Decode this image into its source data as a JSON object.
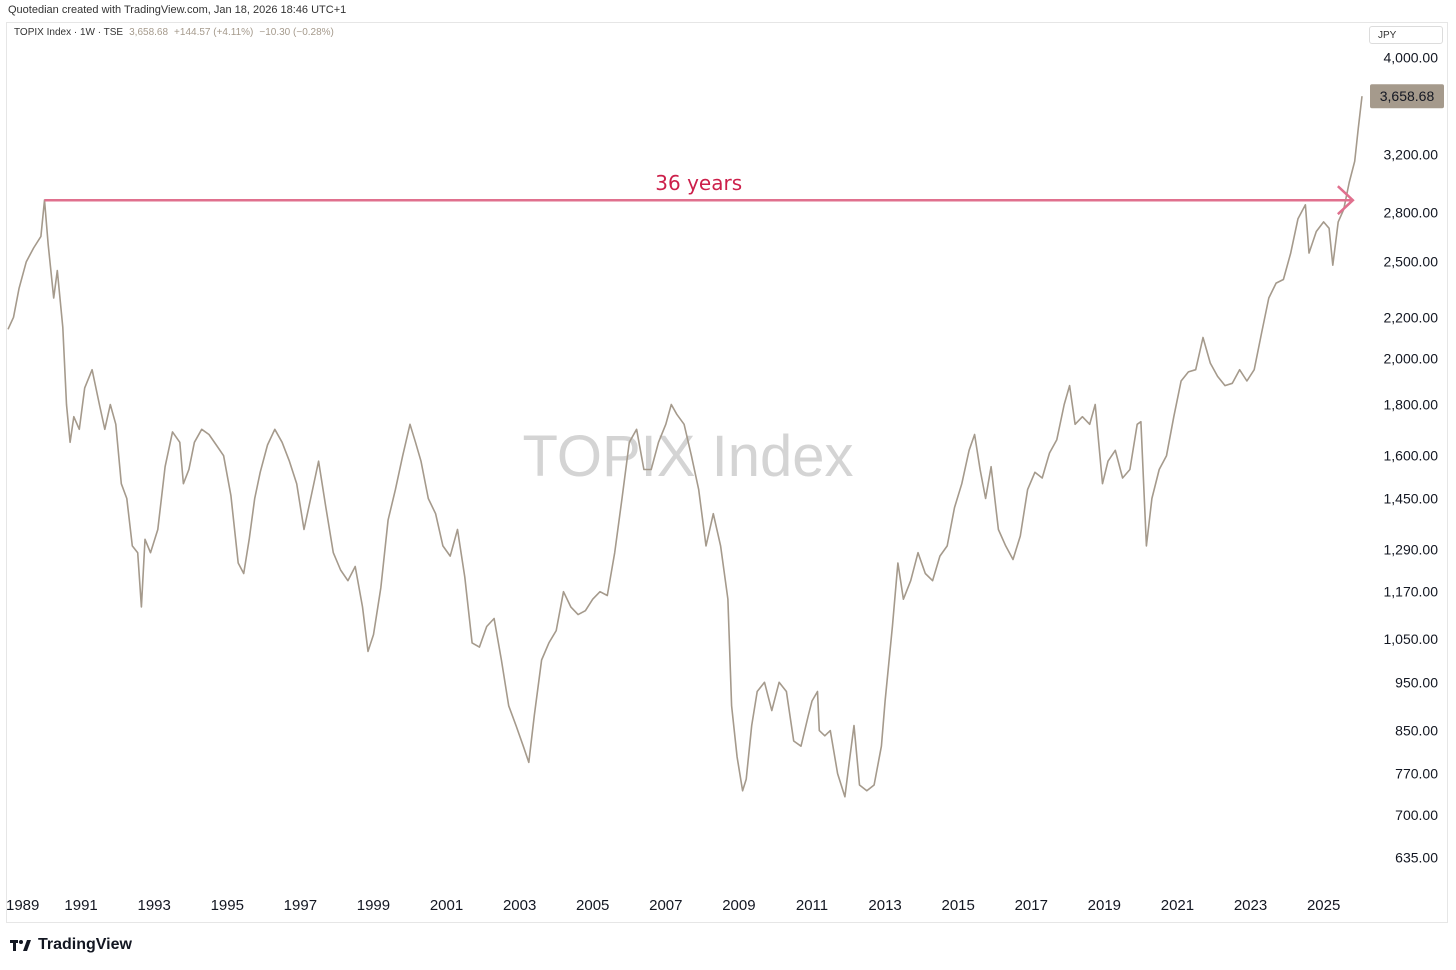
{
  "header": {
    "attribution": "Quotedian created with TradingView.com, Jan 18, 2026 18:46 UTC+1"
  },
  "legend": {
    "symbol": "TOPIX Index · 1W · TSE",
    "last": "3,658.68",
    "change": "+144.57 (+4.11%)",
    "after": "−10.30 (−0.28%)"
  },
  "currency": "JPY",
  "footer": {
    "brand": "TradingView",
    "logo_icon": "tradingview-logo-icon"
  },
  "colors": {
    "line": "#a59a8c",
    "annotation": "#e0708e",
    "annotation_text": "#cc1f4a",
    "watermark": "#d4d4d4",
    "price_tag": "#a59a8c"
  },
  "chart_data": {
    "type": "line",
    "watermark": "TOPIX Index",
    "y_scale": "log",
    "ylim": [
      600,
      4300
    ],
    "xlim": [
      1989.0,
      2026.05
    ],
    "y_ticks": [
      {
        "v": 4000,
        "label": "4,000.00"
      },
      {
        "v": 3200,
        "label": "3,200.00"
      },
      {
        "v": 2800,
        "label": "2,800.00"
      },
      {
        "v": 2500,
        "label": "2,500.00"
      },
      {
        "v": 2200,
        "label": "2,200.00"
      },
      {
        "v": 2000,
        "label": "2,000.00"
      },
      {
        "v": 1800,
        "label": "1,800.00"
      },
      {
        "v": 1600,
        "label": "1,600.00"
      },
      {
        "v": 1450,
        "label": "1,450.00"
      },
      {
        "v": 1290,
        "label": "1,290.00"
      },
      {
        "v": 1170,
        "label": "1,170.00"
      },
      {
        "v": 1050,
        "label": "1,050.00"
      },
      {
        "v": 950,
        "label": "950.00"
      },
      {
        "v": 850,
        "label": "850.00"
      },
      {
        "v": 770,
        "label": "770.00"
      },
      {
        "v": 700,
        "label": "700.00"
      },
      {
        "v": 635,
        "label": "635.00"
      }
    ],
    "x_ticks": [
      {
        "v": 1989.0,
        "label": "1989"
      },
      {
        "v": 1991.0,
        "label": "1991"
      },
      {
        "v": 1993.0,
        "label": "1993"
      },
      {
        "v": 1995.0,
        "label": "1995"
      },
      {
        "v": 1997.0,
        "label": "1997"
      },
      {
        "v": 1999.0,
        "label": "1999"
      },
      {
        "v": 2001.0,
        "label": "2001"
      },
      {
        "v": 2003.0,
        "label": "2003"
      },
      {
        "v": 2005.0,
        "label": "2005"
      },
      {
        "v": 2007.0,
        "label": "2007"
      },
      {
        "v": 2009.0,
        "label": "2009"
      },
      {
        "v": 2011.0,
        "label": "2011"
      },
      {
        "v": 2013.0,
        "label": "2013"
      },
      {
        "v": 2015.0,
        "label": "2015"
      },
      {
        "v": 2017.0,
        "label": "2017"
      },
      {
        "v": 2019.0,
        "label": "2019"
      },
      {
        "v": 2021.0,
        "label": "2021"
      },
      {
        "v": 2023.0,
        "label": "2023"
      },
      {
        "v": 2025.0,
        "label": "2025"
      }
    ],
    "last_price": {
      "v": 3658.68,
      "label": "3,658.68"
    },
    "annotation": {
      "label": "36 years",
      "from_x": 1990.0,
      "to_x": 2025.8,
      "y": 2880
    },
    "series": [
      {
        "points": [
          [
            1989.0,
            2140
          ],
          [
            1989.15,
            2200
          ],
          [
            1989.3,
            2350
          ],
          [
            1989.5,
            2500
          ],
          [
            1989.7,
            2580
          ],
          [
            1989.9,
            2650
          ],
          [
            1990.0,
            2881
          ],
          [
            1990.1,
            2600
          ],
          [
            1990.25,
            2300
          ],
          [
            1990.35,
            2450
          ],
          [
            1990.5,
            2150
          ],
          [
            1990.6,
            1800
          ],
          [
            1990.7,
            1650
          ],
          [
            1990.8,
            1750
          ],
          [
            1990.95,
            1700
          ],
          [
            1991.1,
            1870
          ],
          [
            1991.3,
            1950
          ],
          [
            1991.5,
            1800
          ],
          [
            1991.65,
            1700
          ],
          [
            1991.8,
            1800
          ],
          [
            1991.95,
            1720
          ],
          [
            1992.1,
            1500
          ],
          [
            1992.25,
            1450
          ],
          [
            1992.4,
            1300
          ],
          [
            1992.55,
            1280
          ],
          [
            1992.65,
            1130
          ],
          [
            1992.75,
            1320
          ],
          [
            1992.9,
            1280
          ],
          [
            1993.1,
            1350
          ],
          [
            1993.3,
            1560
          ],
          [
            1993.5,
            1690
          ],
          [
            1993.7,
            1650
          ],
          [
            1993.8,
            1500
          ],
          [
            1993.95,
            1550
          ],
          [
            1994.1,
            1650
          ],
          [
            1994.3,
            1700
          ],
          [
            1994.5,
            1680
          ],
          [
            1994.7,
            1640
          ],
          [
            1994.9,
            1600
          ],
          [
            1995.1,
            1460
          ],
          [
            1995.3,
            1250
          ],
          [
            1995.45,
            1220
          ],
          [
            1995.6,
            1320
          ],
          [
            1995.75,
            1450
          ],
          [
            1995.9,
            1540
          ],
          [
            1996.1,
            1640
          ],
          [
            1996.3,
            1700
          ],
          [
            1996.5,
            1650
          ],
          [
            1996.7,
            1580
          ],
          [
            1996.9,
            1500
          ],
          [
            1997.1,
            1350
          ],
          [
            1997.3,
            1460
          ],
          [
            1997.5,
            1580
          ],
          [
            1997.7,
            1420
          ],
          [
            1997.9,
            1280
          ],
          [
            1998.1,
            1230
          ],
          [
            1998.3,
            1200
          ],
          [
            1998.5,
            1240
          ],
          [
            1998.7,
            1130
          ],
          [
            1998.85,
            1020
          ],
          [
            1999.0,
            1060
          ],
          [
            1999.2,
            1180
          ],
          [
            1999.4,
            1380
          ],
          [
            1999.6,
            1480
          ],
          [
            1999.8,
            1600
          ],
          [
            2000.0,
            1720
          ],
          [
            2000.15,
            1650
          ],
          [
            2000.3,
            1580
          ],
          [
            2000.5,
            1450
          ],
          [
            2000.7,
            1400
          ],
          [
            2000.9,
            1300
          ],
          [
            2001.1,
            1270
          ],
          [
            2001.3,
            1350
          ],
          [
            2001.5,
            1210
          ],
          [
            2001.7,
            1040
          ],
          [
            2001.9,
            1030
          ],
          [
            2002.1,
            1080
          ],
          [
            2002.3,
            1100
          ],
          [
            2002.5,
            1000
          ],
          [
            2002.7,
            900
          ],
          [
            2002.9,
            860
          ],
          [
            2003.1,
            820
          ],
          [
            2003.25,
            790
          ],
          [
            2003.4,
            880
          ],
          [
            2003.6,
            1000
          ],
          [
            2003.8,
            1040
          ],
          [
            2004.0,
            1070
          ],
          [
            2004.2,
            1170
          ],
          [
            2004.4,
            1130
          ],
          [
            2004.6,
            1110
          ],
          [
            2004.8,
            1120
          ],
          [
            2005.0,
            1150
          ],
          [
            2005.2,
            1170
          ],
          [
            2005.4,
            1160
          ],
          [
            2005.6,
            1280
          ],
          [
            2005.8,
            1450
          ],
          [
            2006.0,
            1650
          ],
          [
            2006.2,
            1700
          ],
          [
            2006.4,
            1550
          ],
          [
            2006.6,
            1550
          ],
          [
            2006.8,
            1650
          ],
          [
            2007.0,
            1720
          ],
          [
            2007.15,
            1800
          ],
          [
            2007.3,
            1760
          ],
          [
            2007.5,
            1720
          ],
          [
            2007.7,
            1600
          ],
          [
            2007.9,
            1480
          ],
          [
            2008.1,
            1300
          ],
          [
            2008.3,
            1400
          ],
          [
            2008.5,
            1300
          ],
          [
            2008.7,
            1150
          ],
          [
            2008.8,
            900
          ],
          [
            2008.95,
            800
          ],
          [
            2009.1,
            740
          ],
          [
            2009.2,
            760
          ],
          [
            2009.35,
            860
          ],
          [
            2009.5,
            930
          ],
          [
            2009.7,
            950
          ],
          [
            2009.9,
            890
          ],
          [
            2010.1,
            950
          ],
          [
            2010.3,
            930
          ],
          [
            2010.5,
            830
          ],
          [
            2010.7,
            820
          ],
          [
            2010.9,
            880
          ],
          [
            2011.0,
            910
          ],
          [
            2011.15,
            930
          ],
          [
            2011.2,
            850
          ],
          [
            2011.35,
            840
          ],
          [
            2011.5,
            850
          ],
          [
            2011.7,
            770
          ],
          [
            2011.9,
            730
          ],
          [
            2012.0,
            780
          ],
          [
            2012.15,
            860
          ],
          [
            2012.3,
            750
          ],
          [
            2012.5,
            740
          ],
          [
            2012.7,
            750
          ],
          [
            2012.9,
            820
          ],
          [
            2013.0,
            910
          ],
          [
            2013.2,
            1080
          ],
          [
            2013.35,
            1250
          ],
          [
            2013.5,
            1150
          ],
          [
            2013.7,
            1200
          ],
          [
            2013.9,
            1280
          ],
          [
            2014.1,
            1220
          ],
          [
            2014.3,
            1200
          ],
          [
            2014.5,
            1270
          ],
          [
            2014.7,
            1300
          ],
          [
            2014.9,
            1420
          ],
          [
            2015.1,
            1500
          ],
          [
            2015.3,
            1620
          ],
          [
            2015.45,
            1680
          ],
          [
            2015.6,
            1550
          ],
          [
            2015.75,
            1450
          ],
          [
            2015.9,
            1560
          ],
          [
            2016.1,
            1350
          ],
          [
            2016.3,
            1300
          ],
          [
            2016.5,
            1260
          ],
          [
            2016.7,
            1330
          ],
          [
            2016.9,
            1480
          ],
          [
            2017.1,
            1540
          ],
          [
            2017.3,
            1520
          ],
          [
            2017.5,
            1610
          ],
          [
            2017.7,
            1660
          ],
          [
            2017.9,
            1800
          ],
          [
            2018.05,
            1880
          ],
          [
            2018.2,
            1720
          ],
          [
            2018.4,
            1750
          ],
          [
            2018.6,
            1720
          ],
          [
            2018.75,
            1800
          ],
          [
            2018.95,
            1500
          ],
          [
            2019.1,
            1580
          ],
          [
            2019.3,
            1620
          ],
          [
            2019.5,
            1520
          ],
          [
            2019.7,
            1550
          ],
          [
            2019.9,
            1720
          ],
          [
            2020.0,
            1730
          ],
          [
            2020.15,
            1300
          ],
          [
            2020.3,
            1450
          ],
          [
            2020.5,
            1550
          ],
          [
            2020.7,
            1600
          ],
          [
            2020.9,
            1750
          ],
          [
            2021.1,
            1900
          ],
          [
            2021.3,
            1940
          ],
          [
            2021.5,
            1950
          ],
          [
            2021.7,
            2100
          ],
          [
            2021.9,
            1980
          ],
          [
            2022.1,
            1920
          ],
          [
            2022.3,
            1880
          ],
          [
            2022.5,
            1890
          ],
          [
            2022.7,
            1950
          ],
          [
            2022.9,
            1900
          ],
          [
            2023.1,
            1950
          ],
          [
            2023.3,
            2120
          ],
          [
            2023.5,
            2300
          ],
          [
            2023.7,
            2380
          ],
          [
            2023.9,
            2400
          ],
          [
            2024.1,
            2550
          ],
          [
            2024.3,
            2760
          ],
          [
            2024.5,
            2850
          ],
          [
            2024.6,
            2550
          ],
          [
            2024.8,
            2680
          ],
          [
            2025.0,
            2740
          ],
          [
            2025.15,
            2700
          ],
          [
            2025.25,
            2480
          ],
          [
            2025.4,
            2740
          ],
          [
            2025.55,
            2820
          ],
          [
            2025.7,
            3000
          ],
          [
            2025.85,
            3150
          ],
          [
            2025.95,
            3400
          ],
          [
            2026.05,
            3658.68
          ]
        ]
      }
    ]
  }
}
